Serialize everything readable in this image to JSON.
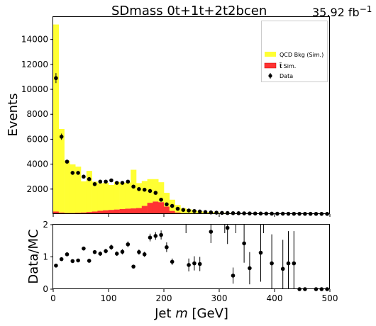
{
  "title": "SDmass  0t+1t+2t2bcen",
  "lumi": "35.92 fb",
  "lumi_exp": "−1",
  "colors": {
    "qcd": "#ffff33",
    "ttbar": "#ff3333",
    "data": "#000000"
  },
  "chart_data": {
    "type": "bar",
    "bin_width": 10,
    "bin_starts": [
      0,
      10,
      20,
      30,
      40,
      50,
      60,
      70,
      80,
      90,
      100,
      110,
      120,
      130,
      140,
      150,
      160,
      170,
      180,
      190,
      200,
      210,
      220,
      230,
      240,
      250,
      260,
      270,
      280,
      290,
      300,
      310,
      320,
      330,
      340,
      350,
      360,
      370,
      380,
      390,
      400,
      410,
      420,
      430,
      440,
      450,
      460,
      470,
      480,
      490
    ],
    "series": [
      {
        "name": "QCD Bkg (Sim.)",
        "values": [
          15000,
          6700,
          4200,
          3900,
          3700,
          2500,
          3300,
          2400,
          2200,
          2200,
          2000,
          2200,
          2100,
          2100,
          3100,
          2000,
          2000,
          1900,
          1800,
          1600,
          1100,
          900,
          600,
          420,
          350,
          270,
          200,
          150,
          160,
          120,
          90,
          80,
          60,
          60,
          40,
          45,
          30,
          40,
          30,
          30,
          25,
          20,
          25,
          20,
          20,
          15,
          10,
          10,
          12,
          8
        ]
      },
      {
        "name": "t#bar{t} Sim.",
        "values": [
          200,
          120,
          80,
          80,
          100,
          120,
          160,
          200,
          260,
          300,
          330,
          360,
          400,
          430,
          450,
          480,
          650,
          900,
          1000,
          950,
          600,
          250,
          120,
          60,
          30,
          20,
          12,
          8,
          6,
          5,
          4,
          3,
          3,
          2,
          2,
          2,
          1,
          1,
          1,
          1,
          1,
          1,
          1,
          1,
          1,
          1,
          1,
          1,
          1,
          1
        ]
      },
      {
        "name": "Data",
        "values": [
          10900,
          6200,
          4200,
          3300,
          3300,
          3000,
          2800,
          2400,
          2600,
          2600,
          2700,
          2500,
          2500,
          2600,
          2200,
          2000,
          1950,
          1850,
          1700,
          1150,
          780,
          650,
          420,
          330,
          280,
          240,
          200,
          160,
          130,
          110,
          90,
          80,
          70,
          65,
          55,
          48,
          42,
          38,
          35,
          30,
          26,
          24,
          22,
          20,
          18,
          16,
          15,
          14,
          12,
          10
        ]
      }
    ],
    "data_errors": [
      400,
      250,
      150,
      120,
      110,
      100,
      100,
      90,
      95,
      95,
      95,
      90,
      90,
      95,
      90,
      85,
      85,
      80,
      80,
      65,
      55,
      50,
      40,
      35,
      30,
      28,
      25,
      22,
      20,
      18,
      17,
      16,
      15,
      14,
      13,
      12,
      11,
      11,
      10,
      10,
      9,
      9,
      9,
      8,
      8,
      8,
      7,
      7,
      7,
      6
    ],
    "xlabel_prefix": "Jet ",
    "xlabel_var": "m",
    "xlabel_suffix": " [GeV]",
    "ylabel": "Events",
    "xlim": [
      0,
      500
    ],
    "ylim": [
      0,
      15800
    ],
    "yticks": [
      2000,
      4000,
      6000,
      8000,
      10000,
      12000,
      14000
    ],
    "xticks": [
      0,
      100,
      200,
      300,
      400,
      500
    ],
    "legend_placement": "upper-right",
    "ratio": {
      "ylabel": "Data/MC",
      "ylim": [
        0,
        2
      ],
      "yticks": [
        0,
        1,
        2
      ],
      "x_centers": [
        5,
        15,
        25,
        35,
        45,
        55,
        65,
        75,
        85,
        95,
        105,
        115,
        125,
        135,
        145,
        155,
        165,
        175,
        185,
        195,
        205,
        215,
        245,
        255,
        265,
        285,
        315,
        325,
        345,
        355,
        375,
        395,
        415,
        425,
        435,
        445,
        455,
        475,
        485,
        495
      ],
      "values": [
        0.73,
        0.93,
        1.08,
        0.87,
        0.89,
        1.26,
        0.88,
        1.15,
        1.1,
        1.18,
        1.3,
        1.1,
        1.16,
        1.39,
        0.7,
        1.15,
        1.08,
        1.6,
        1.65,
        1.68,
        1.3,
        0.85,
        0.75,
        0.8,
        0.78,
        1.78,
        1.9,
        0.42,
        1.42,
        0.65,
        1.13,
        0.8,
        0.63,
        0.8,
        0.8,
        0,
        0,
        0,
        0,
        0
      ],
      "errors": [
        0.03,
        0.05,
        0.05,
        0.05,
        0.05,
        0.06,
        0.05,
        0.06,
        0.07,
        0.07,
        0.08,
        0.07,
        0.08,
        0.09,
        0.05,
        0.08,
        0.08,
        0.12,
        0.12,
        0.14,
        0.15,
        0.1,
        0.2,
        0.22,
        0.22,
        0.35,
        0.5,
        0.25,
        0.6,
        0.5,
        0.9,
        0.9,
        0.9,
        1.0,
        1.0,
        0,
        0,
        0,
        0,
        0
      ],
      "partial_lines": [
        240,
        310,
        330,
        380
      ]
    }
  }
}
